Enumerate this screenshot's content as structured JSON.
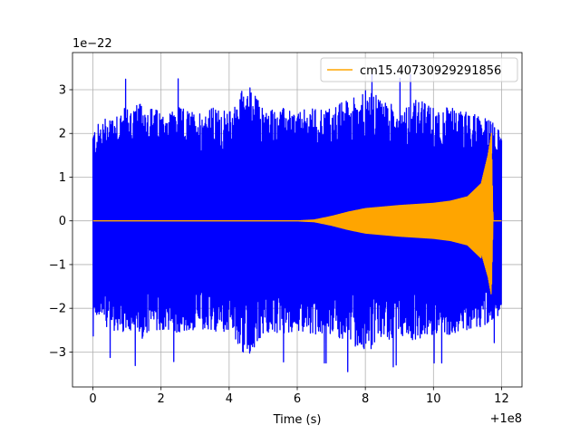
{
  "chart_data": {
    "type": "line",
    "title": "",
    "xlabel": "Time (s)",
    "ylabel": "",
    "x_offset_label": "+1e8",
    "y_scale_label": "1e−22",
    "xlim": [
      -0.6,
      12.6
    ],
    "ylim": [
      -3.8,
      3.85
    ],
    "x_ticks": [
      0,
      2,
      4,
      6,
      8,
      10,
      12
    ],
    "y_ticks": [
      -3,
      -2,
      -1,
      0,
      1,
      2,
      3
    ],
    "x_tick_labels": [
      "0",
      "2",
      "4",
      "6",
      "8",
      "10",
      "12"
    ],
    "y_tick_labels": [
      "−3",
      "−2",
      "−1",
      "0",
      "1",
      "2",
      "3"
    ],
    "grid": true,
    "legend": {
      "position": "upper-right",
      "entries": [
        "cm15.40730929291856"
      ]
    },
    "series": [
      {
        "color": "#0000ff",
        "kind": "noise",
        "x_range": [
          0,
          12
        ],
        "envelope": [
          [
            0,
            2.1
          ],
          [
            0.5,
            2.5
          ],
          [
            1,
            2.6
          ],
          [
            1.5,
            2.7
          ],
          [
            2,
            2.5
          ],
          [
            2.5,
            2.6
          ],
          [
            3,
            2.5
          ],
          [
            3.5,
            2.6
          ],
          [
            4,
            2.5
          ],
          [
            4.5,
            3.2
          ],
          [
            5,
            2.6
          ],
          [
            5.5,
            2.6
          ],
          [
            6,
            2.5
          ],
          [
            6.5,
            2.6
          ],
          [
            7,
            2.6
          ],
          [
            7.5,
            2.8
          ],
          [
            8,
            3.0
          ],
          [
            8.5,
            2.8
          ],
          [
            9,
            2.6
          ],
          [
            9.5,
            2.8
          ],
          [
            10,
            2.6
          ],
          [
            10.5,
            2.6
          ],
          [
            11,
            2.5
          ],
          [
            11.5,
            2.4
          ],
          [
            12,
            2.1
          ]
        ],
        "min": -3.45,
        "max": 3.35
      },
      {
        "name": "cm15.40730929291856",
        "color": "#ffa500",
        "kind": "chirp",
        "x_range": [
          0,
          12
        ],
        "envelope": [
          [
            0,
            0.0
          ],
          [
            6,
            0.0
          ],
          [
            6.5,
            0.02
          ],
          [
            7.0,
            0.1
          ],
          [
            7.5,
            0.2
          ],
          [
            8.0,
            0.28
          ],
          [
            9.0,
            0.35
          ],
          [
            10.0,
            0.4
          ],
          [
            10.5,
            0.45
          ],
          [
            11.0,
            0.55
          ],
          [
            11.4,
            0.85
          ],
          [
            11.6,
            1.5
          ],
          [
            11.7,
            2.0
          ],
          [
            11.75,
            0.0
          ],
          [
            12,
            0.0
          ]
        ],
        "min": -1.7,
        "max": 2.05
      }
    ]
  }
}
